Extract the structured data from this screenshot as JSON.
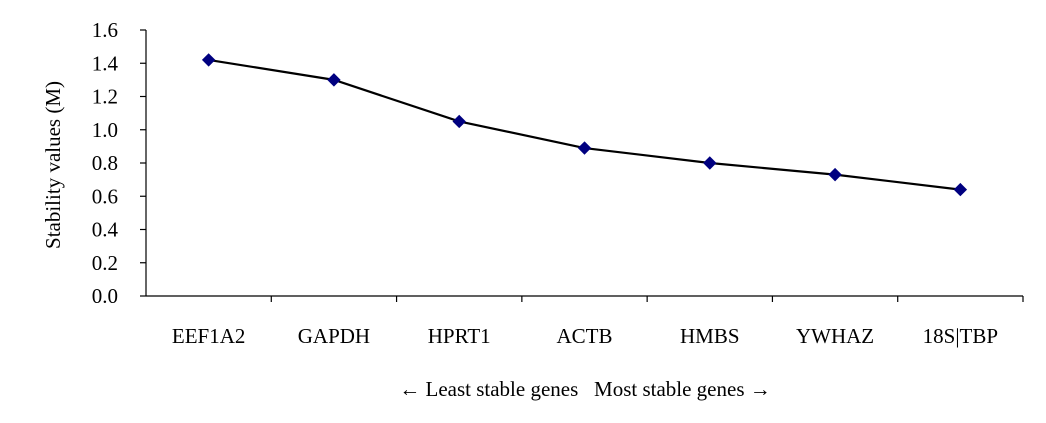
{
  "chart_data": {
    "type": "line",
    "categories": [
      "EEF1A2",
      "GAPDH",
      "HPRT1",
      "ACTB",
      "HMBS",
      "YWHAZ",
      "18S|TBP"
    ],
    "series": [
      {
        "values": [
          1.42,
          1.3,
          1.05,
          0.89,
          0.8,
          0.73,
          0.64
        ],
        "color": "#000080",
        "line_color": "#000000",
        "marker": "diamond"
      }
    ],
    "title": "",
    "ylabel": "Stability values (M)",
    "xlabel": "← Least stable genes   Most stable genes →",
    "ylim": [
      0,
      1.6
    ],
    "yticks": [
      0.0,
      0.2,
      0.4,
      0.6,
      0.8,
      1.0,
      1.2,
      1.4,
      1.6
    ],
    "ytick_labels": [
      "0.0",
      "0.2",
      "0.4",
      "0.6",
      "0.8",
      "1.0",
      "1.2",
      "1.4",
      "1.6"
    ],
    "grid": false,
    "legend": "none"
  }
}
